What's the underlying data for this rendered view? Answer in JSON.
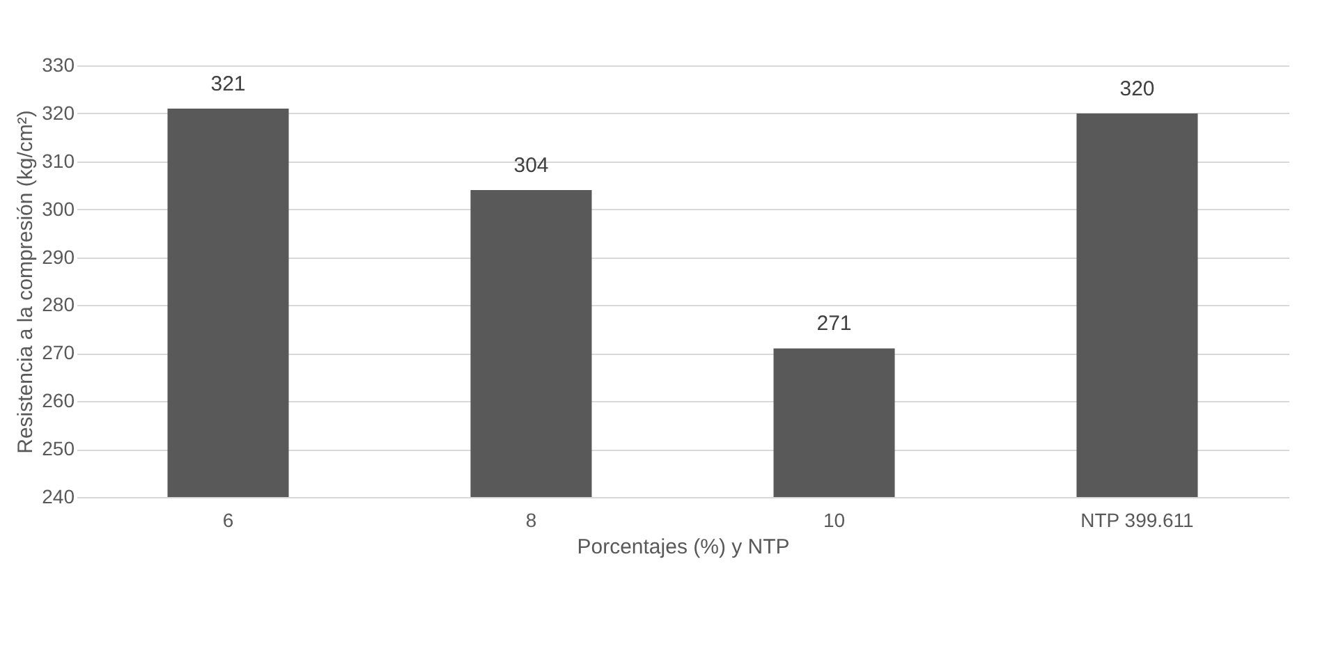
{
  "chart_data": {
    "type": "bar",
    "xlabel": "Porcentajes (%) y NTP",
    "ylabel": "Resistencia a la compresión (kg/cm²)",
    "categories": [
      "6",
      "8",
      "10",
      "NTP 399.611"
    ],
    "values": [
      321,
      304,
      271,
      320
    ],
    "color": "#595959",
    "ylim": [
      240,
      330
    ],
    "yticks": [
      240,
      250,
      260,
      270,
      280,
      290,
      300,
      310,
      320,
      330
    ],
    "grid": "y",
    "data_labels": true
  }
}
